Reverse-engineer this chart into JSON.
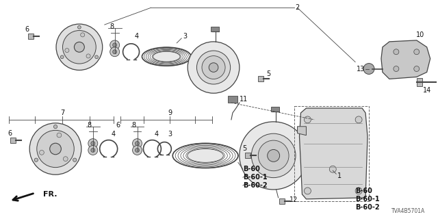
{
  "bg_color": "#ffffff",
  "line_color": "#444444",
  "label_color": "#111111",
  "diagram_code": "TVA4B5701A",
  "part_numbers": [
    "B-60",
    "B-60-1",
    "B-60-2"
  ],
  "figsize": [
    6.4,
    3.2
  ],
  "dpi": 100
}
